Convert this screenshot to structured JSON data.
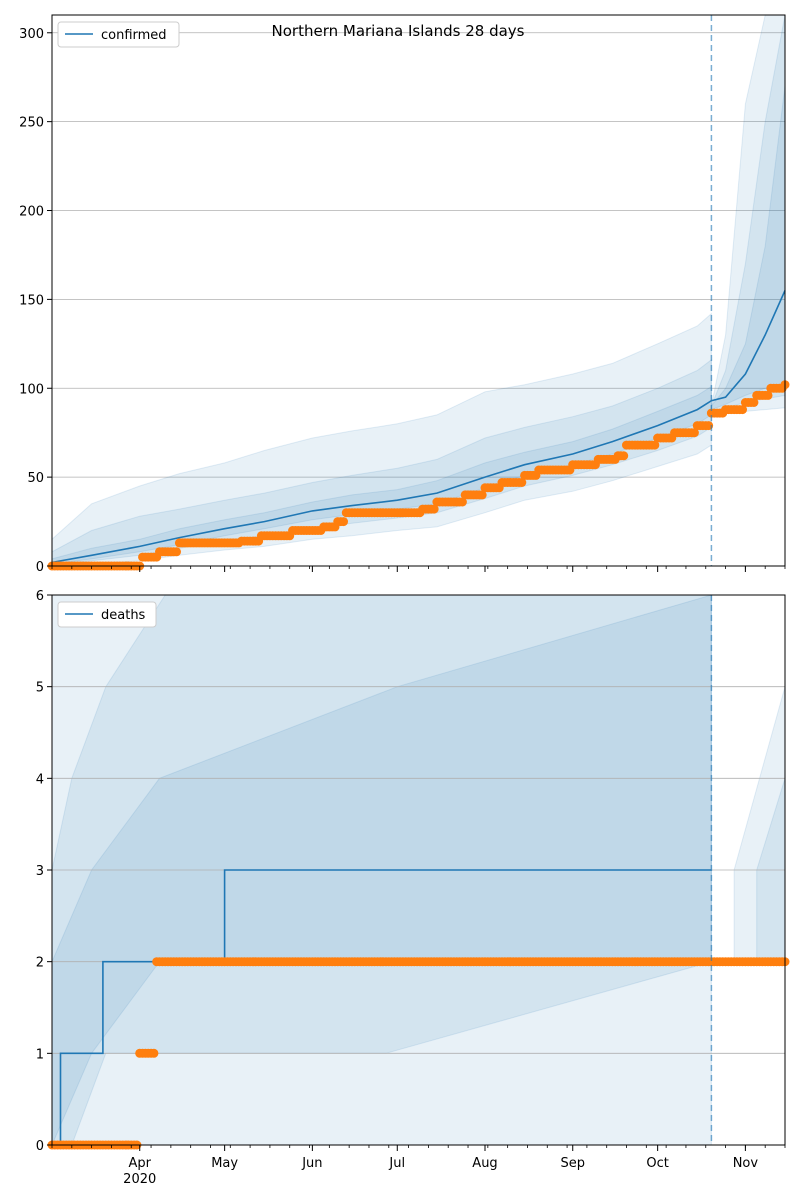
{
  "chart_data": [
    {
      "type": "line",
      "title": "Northern Mariana Islands 28 days",
      "xlabel": "",
      "ylabel": "",
      "x_axis": "date",
      "xlim": [
        "2020-03-01",
        "2020-11-15"
      ],
      "ylim": [
        0,
        310
      ],
      "y_ticks": [
        0,
        50,
        100,
        150,
        200,
        250,
        300
      ],
      "grid": "horizontal",
      "legend": "top-left",
      "forecast_start": "2020-10-20",
      "series": [
        {
          "name": "confirmed",
          "kind": "model line",
          "color": "#1f77b4",
          "x": [
            "2020-03-01",
            "2020-03-15",
            "2020-04-01",
            "2020-04-15",
            "2020-05-01",
            "2020-05-15",
            "2020-06-01",
            "2020-06-15",
            "2020-07-01",
            "2020-07-15",
            "2020-08-01",
            "2020-08-15",
            "2020-09-01",
            "2020-09-15",
            "2020-10-01",
            "2020-10-15",
            "2020-10-20",
            "2020-10-25",
            "2020-11-01",
            "2020-11-08",
            "2020-11-15"
          ],
          "y": [
            2,
            6,
            11,
            16,
            21,
            25,
            31,
            34,
            37,
            41,
            50,
            57,
            63,
            70,
            79,
            88,
            93,
            95,
            108,
            130,
            155
          ]
        },
        {
          "kind": "observed points",
          "color": "#ff7f0e",
          "x": [
            "2020-03-01",
            "2020-03-31",
            "2020-04-02",
            "2020-04-08",
            "2020-04-15",
            "2020-05-07",
            "2020-05-14",
            "2020-05-25",
            "2020-06-05",
            "2020-06-10",
            "2020-06-13",
            "2020-07-01",
            "2020-07-10",
            "2020-07-15",
            "2020-07-25",
            "2020-08-01",
            "2020-08-07",
            "2020-08-15",
            "2020-08-20",
            "2020-09-01",
            "2020-09-10",
            "2020-09-17",
            "2020-09-20",
            "2020-10-01",
            "2020-10-07",
            "2020-10-15",
            "2020-10-20",
            "2020-10-25",
            "2020-11-01",
            "2020-11-05",
            "2020-11-10",
            "2020-11-15"
          ],
          "y": [
            0,
            0,
            5,
            8,
            13,
            14,
            17,
            20,
            22,
            25,
            30,
            30,
            32,
            36,
            40,
            44,
            47,
            51,
            54,
            57,
            60,
            62,
            68,
            72,
            75,
            79,
            86,
            88,
            92,
            96,
            100,
            102
          ]
        }
      ],
      "bands": [
        {
          "x": [
            "2020-03-01",
            "2020-03-15",
            "2020-04-01",
            "2020-04-15",
            "2020-05-01",
            "2020-05-15",
            "2020-06-01",
            "2020-06-15",
            "2020-07-01",
            "2020-07-15",
            "2020-08-01",
            "2020-08-15",
            "2020-09-01",
            "2020-09-15",
            "2020-10-01",
            "2020-10-15",
            "2020-10-20"
          ],
          "low": [
            0,
            1,
            3,
            6,
            9,
            11,
            15,
            17,
            20,
            22,
            30,
            37,
            42,
            48,
            56,
            63,
            68
          ],
          "high": [
            15,
            35,
            45,
            52,
            58,
            65,
            72,
            76,
            80,
            85,
            98,
            102,
            108,
            114,
            125,
            135,
            142
          ]
        },
        {
          "x": [
            "2020-03-01",
            "2020-03-15",
            "2020-04-01",
            "2020-04-15",
            "2020-05-01",
            "2020-05-15",
            "2020-06-01",
            "2020-06-15",
            "2020-07-01",
            "2020-07-15",
            "2020-08-01",
            "2020-08-15",
            "2020-09-01",
            "2020-09-15",
            "2020-10-01",
            "2020-10-15",
            "2020-10-20"
          ],
          "low": [
            1,
            3,
            6,
            10,
            14,
            17,
            21,
            24,
            27,
            30,
            38,
            45,
            51,
            57,
            65,
            73,
            78
          ],
          "high": [
            8,
            20,
            28,
            32,
            37,
            41,
            47,
            51,
            55,
            60,
            72,
            78,
            84,
            90,
            100,
            110,
            116
          ]
        },
        {
          "x": [
            "2020-03-01",
            "2020-03-15",
            "2020-04-01",
            "2020-04-15",
            "2020-05-01",
            "2020-05-15",
            "2020-06-01",
            "2020-06-15",
            "2020-07-01",
            "2020-07-15",
            "2020-08-01",
            "2020-08-15",
            "2020-09-01",
            "2020-09-15",
            "2020-10-01",
            "2020-10-15",
            "2020-10-20"
          ],
          "low": [
            1,
            4,
            8,
            12,
            17,
            21,
            26,
            29,
            32,
            35,
            44,
            51,
            57,
            63,
            72,
            80,
            85
          ],
          "high": [
            4,
            10,
            15,
            21,
            26,
            30,
            36,
            40,
            43,
            48,
            58,
            64,
            70,
            77,
            87,
            96,
            101
          ]
        },
        {
          "x": [
            "2020-10-20",
            "2020-10-25",
            "2020-11-01",
            "2020-11-08",
            "2020-11-15"
          ],
          "low": [
            85,
            86,
            87,
            88,
            89
          ],
          "high": [
            90,
            130,
            260,
            310,
            310
          ]
        },
        {
          "x": [
            "2020-10-20",
            "2020-10-25",
            "2020-11-01",
            "2020-11-08",
            "2020-11-15"
          ],
          "low": [
            87,
            89,
            92,
            94,
            96
          ],
          "high": [
            90,
            110,
            170,
            250,
            310
          ]
        },
        {
          "x": [
            "2020-10-20",
            "2020-10-25",
            "2020-11-01",
            "2020-11-08",
            "2020-11-15"
          ],
          "low": [
            88,
            91,
            96,
            100,
            103
          ],
          "high": [
            90,
            100,
            125,
            180,
            270
          ]
        }
      ]
    },
    {
      "type": "line",
      "title": "",
      "xlabel": "",
      "ylabel": "",
      "x_axis": "date",
      "xlim": [
        "2020-03-01",
        "2020-11-15"
      ],
      "ylim": [
        0,
        6
      ],
      "y_ticks": [
        0,
        1,
        2,
        3,
        4,
        5,
        6
      ],
      "x_ticks": [
        {
          "date": "2020-04-01",
          "label": "Apr",
          "sublabel": "2020"
        },
        {
          "date": "2020-05-01",
          "label": "May"
        },
        {
          "date": "2020-06-01",
          "label": "Jun"
        },
        {
          "date": "2020-07-01",
          "label": "Jul"
        },
        {
          "date": "2020-08-01",
          "label": "Aug"
        },
        {
          "date": "2020-09-01",
          "label": "Sep"
        },
        {
          "date": "2020-10-01",
          "label": "Oct"
        },
        {
          "date": "2020-11-01",
          "label": "Nov"
        }
      ],
      "grid": "horizontal",
      "legend": "top-left",
      "forecast_start": "2020-10-20",
      "series": [
        {
          "name": "deaths",
          "kind": "model step line",
          "color": "#1f77b4",
          "x": [
            "2020-03-01",
            "2020-03-04",
            "2020-03-19",
            "2020-05-01",
            "2020-10-20"
          ],
          "y": [
            0,
            1,
            2,
            3,
            3
          ]
        },
        {
          "kind": "observed points",
          "color": "#ff7f0e",
          "x": [
            "2020-03-01",
            "2020-03-31",
            "2020-04-01",
            "2020-04-06",
            "2020-04-07",
            "2020-11-15"
          ],
          "y": [
            0,
            0,
            1,
            1,
            2,
            2
          ]
        }
      ],
      "bands": [
        {
          "x": [
            "2020-03-01",
            "2020-06-13",
            "2020-10-20"
          ],
          "low": [
            0,
            0,
            0
          ],
          "high": [
            6,
            6,
            6
          ],
          "steps": [
            [
              "2020-06-13",
              0.9
            ]
          ]
        },
        {
          "x": [
            "2020-03-01",
            "2020-03-08",
            "2020-03-20",
            "2020-04-10",
            "2020-06-27",
            "2020-10-20"
          ],
          "low": [
            0,
            0,
            1,
            1,
            1,
            2
          ],
          "high": [
            3,
            4,
            5,
            6,
            6,
            6
          ]
        },
        {
          "x": [
            "2020-03-01",
            "2020-03-15",
            "2020-04-08",
            "2020-07-01",
            "2020-10-20"
          ],
          "low": [
            0,
            1,
            2,
            2,
            2
          ],
          "high": [
            2,
            3,
            4,
            5,
            6
          ]
        },
        {
          "x": [
            "2020-10-28",
            "2020-11-15"
          ],
          "low": [
            2,
            2
          ],
          "high": [
            3,
            5
          ]
        },
        {
          "x": [
            "2020-11-05",
            "2020-11-15"
          ],
          "low": [
            2,
            2
          ],
          "high": [
            3,
            4
          ]
        }
      ]
    }
  ]
}
